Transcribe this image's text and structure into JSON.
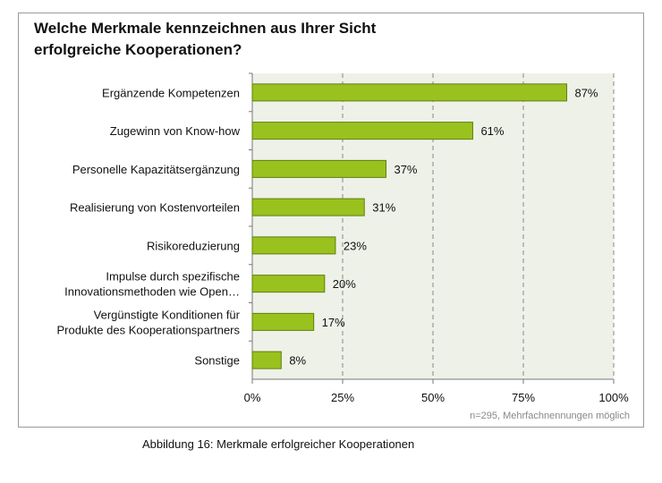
{
  "chart_data": {
    "type": "bar",
    "orientation": "horizontal",
    "title_line1": "Welche Merkmale kennzeichnen aus Ihrer Sicht",
    "title_line2": "erfolgreiche Kooperationen?",
    "categories": [
      [
        "Ergänzende Kompetenzen"
      ],
      [
        "Zugewinn von Know-how"
      ],
      [
        "Personelle Kapazitätsergänzung"
      ],
      [
        "Realisierung von Kostenvorteilen"
      ],
      [
        "Risikoreduzierung"
      ],
      [
        "Impulse durch spezifische",
        "Innovationsmethoden wie Open…"
      ],
      [
        "Vergünstigte Konditionen für",
        "Produkte des Kooperationspartners"
      ],
      [
        "Sonstige"
      ]
    ],
    "values": [
      87,
      61,
      37,
      31,
      23,
      20,
      17,
      8
    ],
    "value_labels": [
      "87%",
      "61%",
      "37%",
      "31%",
      "23%",
      "20%",
      "17%",
      "8%"
    ],
    "x_ticks": [
      0,
      25,
      50,
      75,
      100
    ],
    "x_tick_labels": [
      "0%",
      "25%",
      "50%",
      "75%",
      "100%"
    ],
    "xlim": [
      0,
      100
    ],
    "grid": "dashed vertical",
    "bar_color": "#99c21f",
    "bar_edge_color": "#5f7f0c",
    "note": "n=295, Mehrfachnennungen möglich"
  },
  "caption": "Abbildung 16: Merkmale erfolgreicher Kooperationen"
}
